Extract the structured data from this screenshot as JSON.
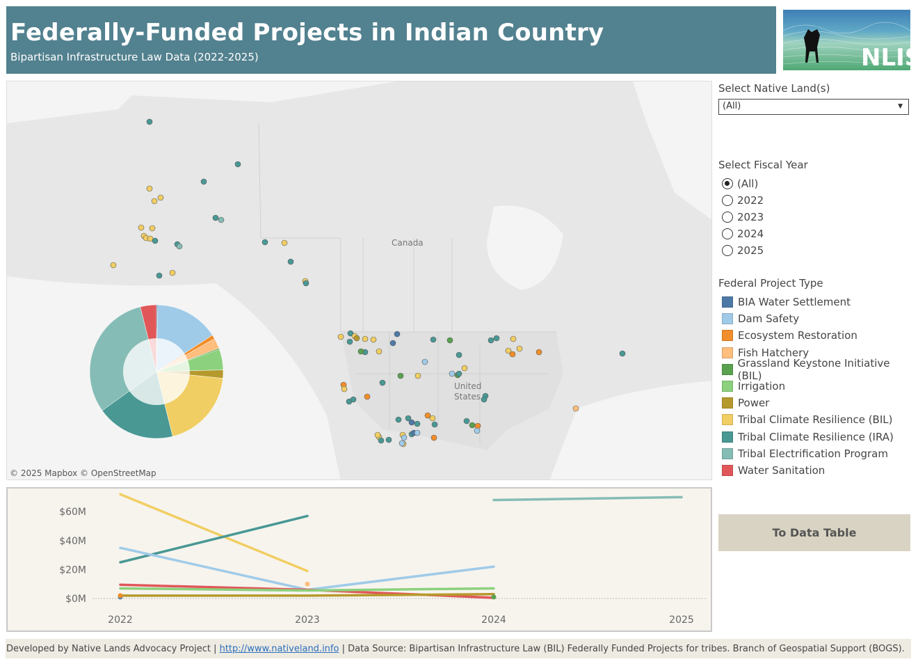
{
  "header": {
    "title": "Federally-Funded Projects in Indian Country",
    "subtitle": "Bipartisan Infrastructure Law Data (2022-2025)"
  },
  "logo": {
    "text": "NLIS"
  },
  "map": {
    "labels": {
      "canada": "Canada",
      "us": "United States"
    },
    "credits": "© 2025 Mapbox  © OpenStreetMap"
  },
  "filters": {
    "native_land": {
      "label": "Select Native Land(s)",
      "value": "(All)"
    },
    "fiscal_year": {
      "label": "Select Fiscal Year",
      "options": [
        "(All)",
        "2022",
        "2023",
        "2024",
        "2025"
      ],
      "selected": "(All)"
    }
  },
  "legend": {
    "title": "Federal Project Type",
    "items": [
      {
        "label": "BIA Water Settlement",
        "color": "#4e79a7"
      },
      {
        "label": "Dam Safety",
        "color": "#a0cbe8"
      },
      {
        "label": "Ecosystem Restoration",
        "color": "#f28e2b"
      },
      {
        "label": "Fish Hatchery",
        "color": "#ffbe7d"
      },
      {
        "label": "Grassland Keystone Initiative (BIL)",
        "color": "#59a14f"
      },
      {
        "label": "Irrigation",
        "color": "#8cd17d"
      },
      {
        "label": "Power",
        "color": "#b6992d"
      },
      {
        "label": "Tribal Climate Resilience (BIL)",
        "color": "#f1ce63"
      },
      {
        "label": "Tribal Climate Resilience (IRA)",
        "color": "#499894"
      },
      {
        "label": "Tribal Electrification Program",
        "color": "#86bcb6"
      },
      {
        "label": "Water Sanitation",
        "color": "#e15759"
      }
    ]
  },
  "button": {
    "label": "To Data Table"
  },
  "footer": {
    "prefix": "Developed by Native Lands Advocacy Project | ",
    "link": "http://www.nativeland.info",
    "suffix": " | Data Source: Bipartisan Infrastructure Law (BIL) Federally Funded Projects for tribes. Branch of Geospatial Support (BOGS)."
  },
  "chart_data": [
    {
      "type": "pie",
      "categories": [
        "BIA Water Settlement",
        "Dam Safety",
        "Ecosystem Restoration",
        "Fish Hatchery",
        "Grassland Keystone Initiative (BIL)",
        "Irrigation",
        "Power",
        "Tribal Climate Resilience (BIL)",
        "Tribal Climate Resilience (IRA)",
        "Tribal Electrification Program",
        "Water Sanitation"
      ],
      "values": [
        0.3,
        15.5,
        1.0,
        2.5,
        0.3,
        5.0,
        2.0,
        19.5,
        19.0,
        31.0,
        3.9
      ],
      "unit": "percent share (estimated)"
    },
    {
      "type": "line",
      "x": [
        "2022",
        "2023",
        "2024",
        "2025"
      ],
      "yticks": [
        "$0M",
        "$20M",
        "$40M",
        "$60M"
      ],
      "ylim": [
        0,
        75
      ],
      "grid": false,
      "series": [
        {
          "name": "Tribal Climate Resilience (BIL)",
          "values": [
            72,
            19,
            null,
            null
          ]
        },
        {
          "name": "Tribal Climate Resilience (IRA)",
          "values": [
            25,
            57,
            null,
            null
          ]
        },
        {
          "name": "Dam Safety",
          "values": [
            35,
            6,
            22,
            null
          ]
        },
        {
          "name": "Water Sanitation",
          "values": [
            9.5,
            6,
            0.5,
            null
          ]
        },
        {
          "name": "Irrigation",
          "values": [
            7,
            5.5,
            7,
            null
          ]
        },
        {
          "name": "Power",
          "values": [
            2,
            2,
            3,
            null
          ]
        },
        {
          "name": "Tribal Electrification Program",
          "values": [
            null,
            null,
            68,
            70
          ]
        },
        {
          "name": "Fish Hatchery",
          "values": [
            null,
            10,
            null,
            null
          ]
        },
        {
          "name": "BIA Water Settlement",
          "values": [
            1,
            null,
            null,
            null
          ]
        },
        {
          "name": "Ecosystem Restoration",
          "values": [
            2,
            null,
            null,
            null
          ]
        },
        {
          "name": "Grassland Keystone Initiative (BIL)",
          "values": [
            null,
            null,
            1,
            null
          ]
        }
      ]
    }
  ]
}
